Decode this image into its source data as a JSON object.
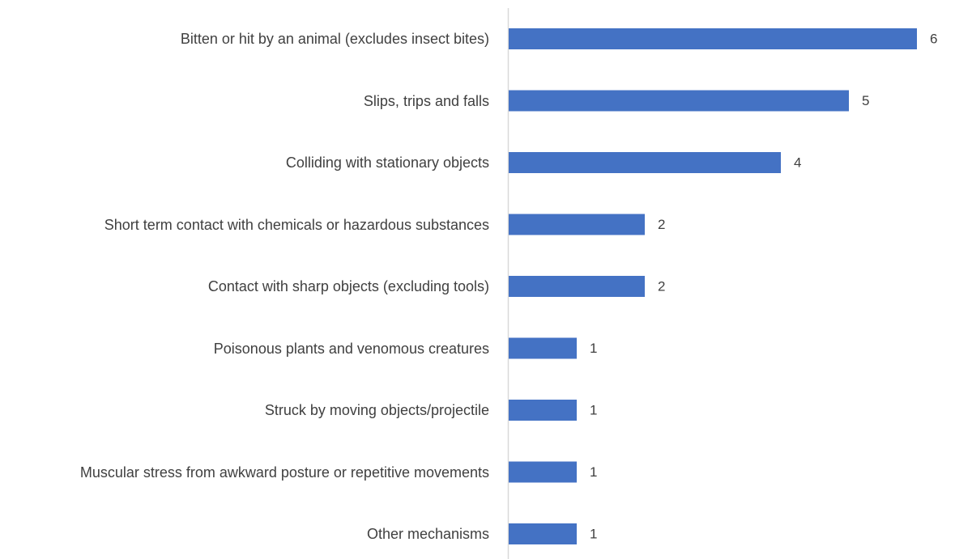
{
  "chart_data": {
    "type": "bar",
    "orientation": "horizontal",
    "categories": [
      "Bitten or hit by an animal (excludes insect bites)",
      "Slips, trips and falls",
      "Colliding with stationary objects",
      "Short term contact with chemicals or hazardous substances",
      "Contact with sharp objects (excluding tools)",
      "Poisonous plants and venomous creatures",
      "Struck by moving objects/projectile",
      "Muscular stress from awkward posture or repetitive movements",
      "Other mechanisms"
    ],
    "values": [
      6,
      5,
      4,
      2,
      2,
      1,
      1,
      1,
      1
    ],
    "color": "#4472c4",
    "xlim": [
      0,
      6.5
    ]
  }
}
